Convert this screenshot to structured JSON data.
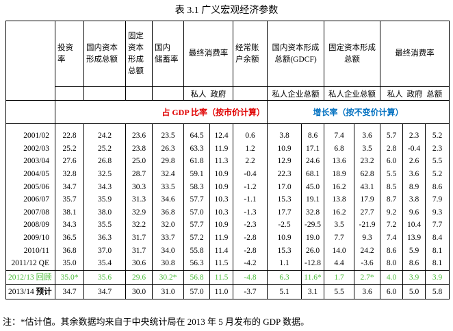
{
  "title": "表 3.1 广义宏观经济参数",
  "table": {
    "headers": [
      {
        "lines": [
          "投资",
          "率"
        ],
        "span": 1
      },
      {
        "lines": [
          "国内资本",
          "形成总额"
        ],
        "span": 1
      },
      {
        "lines": [
          "固定",
          "资本",
          "形成",
          "总额"
        ],
        "span": 1
      },
      {
        "lines": [
          "国内",
          "储蓄率"
        ],
        "span": 1
      },
      {
        "lines": [
          "最终消费率"
        ],
        "span": 2
      },
      {
        "lines": [
          "经常账",
          "户余额"
        ],
        "span": 1
      },
      {
        "lines": [
          "国内资本形成",
          "总额(GDCF)"
        ],
        "span": 2
      },
      {
        "lines": [
          "固定资本形成",
          "总额"
        ],
        "span": 2
      },
      {
        "lines": [
          "最终消费率"
        ],
        "span": 3
      }
    ],
    "subheaders": [
      {
        "col": 4,
        "text": "私人  政府",
        "span": 2
      },
      {
        "col": 7,
        "text": "私人企业总额",
        "span": 2
      },
      {
        "col": 9,
        "text": "私人企业总额",
        "span": 2
      },
      {
        "col": 11,
        "text": "私人  政府  总额",
        "span": 3
      }
    ],
    "sections": [
      "占 GDP 比率（按市价计算）",
      "增长率（按不变价计算）"
    ],
    "rows": [
      {
        "label": "2001/02",
        "values": [
          "22.8",
          "24.2",
          "23.6",
          "23.5",
          "64.5",
          "12.4",
          "0.6",
          "3.8",
          "8.6",
          "7.4",
          "3.6",
          "5.7",
          "2.3",
          "5.2"
        ]
      },
      {
        "label": "2002/03",
        "values": [
          "25.2",
          "25.2",
          "23.8",
          "26.3",
          "63.3",
          "11.9",
          "1.2",
          "10.9",
          "17.1",
          "6.8",
          "3.5",
          "2.8",
          "-0.4",
          "2.3"
        ]
      },
      {
        "label": "2003/04",
        "values": [
          "27.6",
          "26.8",
          "25.0",
          "29.8",
          "61.8",
          "11.3",
          "2.2",
          "12.9",
          "24.6",
          "13.6",
          "23.2",
          "6.0",
          "2.6",
          "5.5"
        ]
      },
      {
        "label": "2004/05",
        "values": [
          "32.8",
          "32.5",
          "28.7",
          "32.4",
          "59.1",
          "10.9",
          "-0.4",
          "22.3",
          "68.1",
          "18.9",
          "62.8",
          "5.5",
          "3.6",
          "5.2"
        ]
      },
      {
        "label": "2005/06",
        "values": [
          "34.7",
          "34.3",
          "30.3",
          "33.5",
          "58.3",
          "10.9",
          "-1.2",
          "17.0",
          "45.0",
          "16.2",
          "43.1",
          "8.5",
          "8.9",
          "8.6"
        ]
      },
      {
        "label": "2006/07",
        "values": [
          "35.7",
          "35.9",
          "31.3",
          "34.6",
          "57.7",
          "10.3",
          "-1.1",
          "15.3",
          "19.1",
          "13.8",
          "17.9",
          "8.7",
          "3.8",
          "7.9"
        ]
      },
      {
        "label": "2007/08",
        "values": [
          "38.1",
          "38.0",
          "32.9",
          "36.8",
          "57.0",
          "10.3",
          "-1.3",
          "17.7",
          "32.8",
          "16.2",
          "27.7",
          "9.2",
          "9.6",
          "9.3"
        ]
      },
      {
        "label": "2008/09",
        "values": [
          "34.3",
          "35.5",
          "32.2",
          "32.0",
          "57.7",
          "10.9",
          "-2.3",
          "-2.5",
          "-29.5",
          "3.5",
          "-21.9",
          "7.2",
          "10.4",
          "7.7"
        ]
      },
      {
        "label": "2009/10",
        "values": [
          "36.5",
          "36.3",
          "31.7",
          "33.7",
          "57.2",
          "11.9",
          "-2.8",
          "10.9",
          "19.0",
          "7.7",
          "9.3",
          "7.4",
          "13.9",
          "8.4"
        ]
      },
      {
        "label": "2010/11",
        "values": [
          "36.8",
          "37.0",
          "31.7",
          "34.0",
          "55.8",
          "11.4",
          "-2.8",
          "15.3",
          "26.0",
          "14.0",
          "24.2",
          "8.6",
          "5.9",
          "8.1"
        ]
      },
      {
        "label": "2011/12 QE",
        "values": [
          "35.0",
          "35.4",
          "30.6",
          "30.8",
          "56.3",
          "11.5",
          "-4.2",
          "1.1",
          "-12.8",
          "4.4",
          "-3.6",
          "8.0",
          "8.6",
          "8.1"
        ]
      },
      {
        "label": "2012/13",
        "tag": "回顾",
        "values": [
          "35.0*",
          "35.6",
          "29.6",
          "30.2*",
          "56.8",
          "11.5",
          "-4.8",
          "6.3",
          "11.6*",
          "1.7",
          "2.7*",
          "4.0",
          "3.9",
          "3.9"
        ]
      },
      {
        "label": "2013/14",
        "tag": "预计",
        "values": [
          "34.7",
          "34.7",
          "30.0",
          "31.0",
          "57.0",
          "11.0",
          "-3.7",
          "5.1",
          "3.1",
          "5.5",
          "3.6",
          "6.0",
          "5.0",
          "5.8"
        ]
      }
    ]
  },
  "footnote": "注：*估计值。其余数据均来自于中央统计局在 2013 年 5 月发布的 GDP 数据。"
}
